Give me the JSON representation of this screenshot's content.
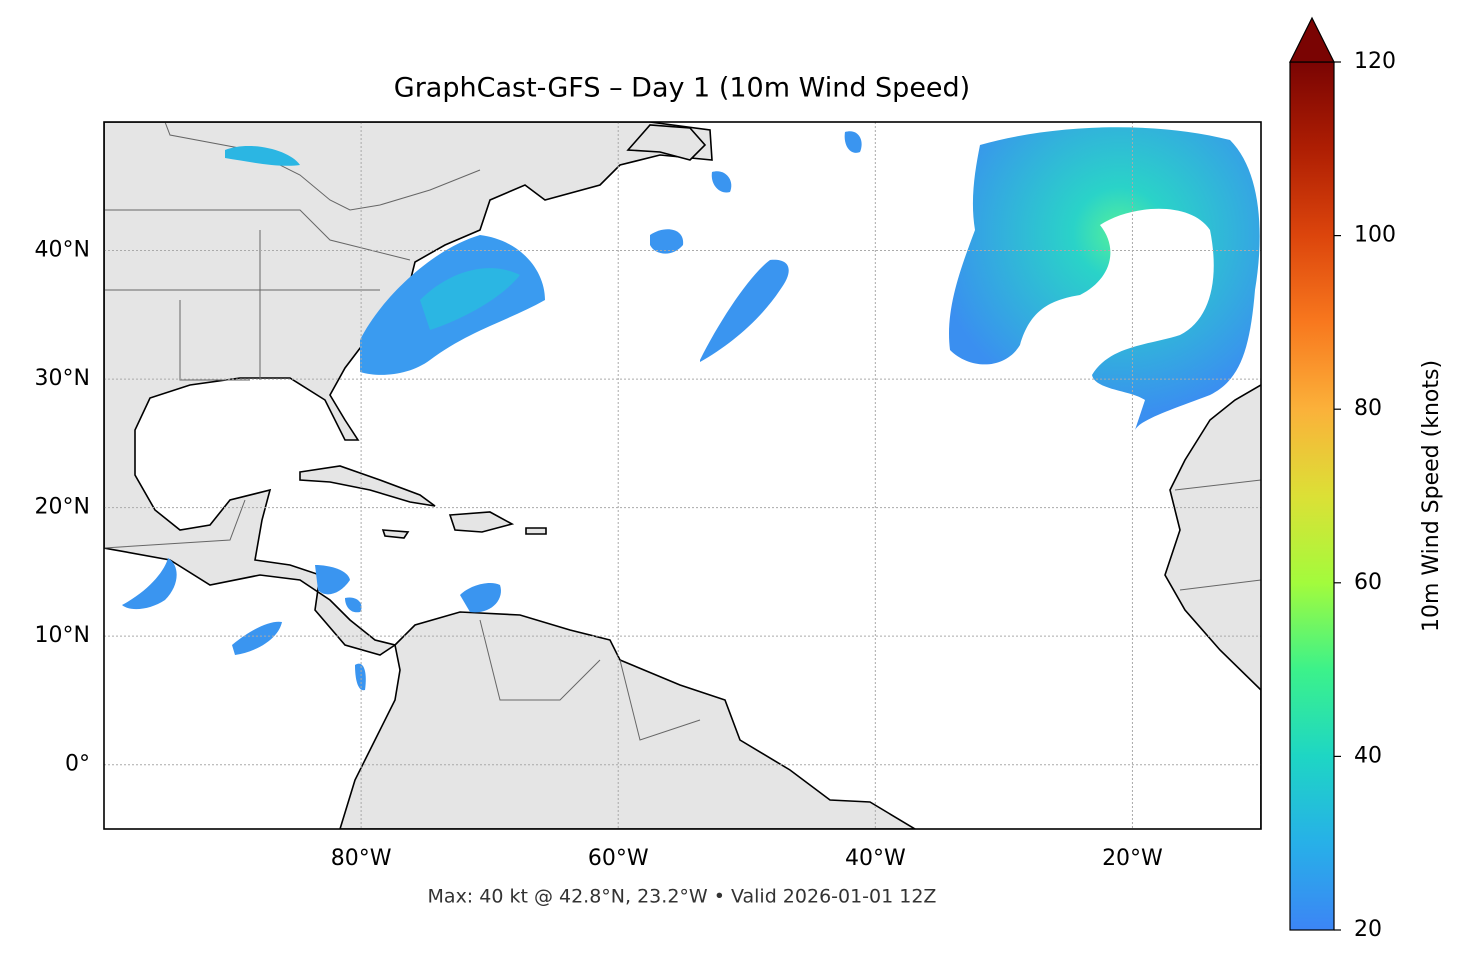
{
  "chart_data": {
    "type": "map",
    "title": "GraphCast-GFS – Day 1 (10m Wind Speed)",
    "xlim": [
      -100,
      -10
    ],
    "ylim": [
      -5,
      50
    ],
    "xticks": [
      {
        "value": -80,
        "label": "80°W"
      },
      {
        "value": -60,
        "label": "60°W"
      },
      {
        "value": -40,
        "label": "40°W"
      },
      {
        "value": -20,
        "label": "20°W"
      }
    ],
    "yticks": [
      {
        "value": 0,
        "label": "0°"
      },
      {
        "value": 10,
        "label": "10°N"
      },
      {
        "value": 20,
        "label": "20°N"
      },
      {
        "value": 30,
        "label": "30°N"
      },
      {
        "value": 40,
        "label": "40°N"
      }
    ],
    "grid": true,
    "colorbar": {
      "label": "10m Wind Speed (knots)",
      "lim": [
        20,
        120
      ],
      "ticks": [
        20,
        40,
        60,
        80,
        100,
        120
      ],
      "extend": "max"
    },
    "footnote": "Max: 40 kt @ 42.8°N, 23.2°W • Valid 2026-01-01 12Z"
  }
}
